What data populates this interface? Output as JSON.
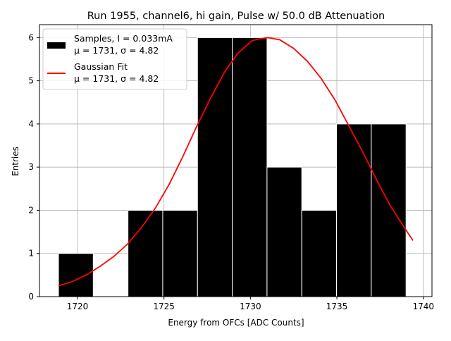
{
  "chart_data": {
    "type": "bar",
    "title": "Run 1955, channel6, hi gain, Pulse w/ 50.0 dB Attenuation",
    "xlabel": "Energy from OFCs [ADC Counts]",
    "ylabel": "Entries",
    "xlim": [
      1717.8,
      1740.5
    ],
    "ylim": [
      0,
      6.3
    ],
    "grid": true,
    "legend_position": "top-left",
    "xticks": [
      "1720",
      "1725",
      "1730",
      "1735",
      "1740"
    ],
    "yticks": [
      "0",
      "1",
      "2",
      "3",
      "4",
      "5",
      "6"
    ],
    "colors": {
      "bars": "#000000",
      "bar_edge": "#ffffff",
      "fit": "#ff0000",
      "grid": "#b0b0b0"
    },
    "histogram": {
      "name": "Samples, I = 0.033mA",
      "stats": "μ = 1731, σ = 4.82",
      "bin_edges": [
        1718.9,
        1720.91,
        1722.92,
        1724.93,
        1726.94,
        1728.95,
        1730.96,
        1732.97,
        1734.98,
        1736.99,
        1739.0
      ],
      "counts": [
        1,
        0,
        2,
        2,
        6,
        6,
        3,
        2,
        4,
        4
      ]
    },
    "fit": {
      "name": "Gaussian Fit",
      "stats": "μ = 1731, σ = 4.82",
      "x": [
        1718.9,
        1719.7,
        1720.5,
        1721.3,
        1722.1,
        1722.9,
        1723.7,
        1724.5,
        1725.3,
        1726.1,
        1726.9,
        1727.7,
        1728.5,
        1729.3,
        1730.1,
        1730.5,
        1731.0,
        1731.7,
        1732.5,
        1733.3,
        1734.1,
        1734.9,
        1735.7,
        1736.5,
        1737.3,
        1738.1,
        1738.9,
        1739.4
      ],
      "y": [
        0.25,
        0.35,
        0.5,
        0.7,
        0.93,
        1.22,
        1.6,
        2.05,
        2.6,
        3.25,
        3.95,
        4.6,
        5.2,
        5.65,
        5.93,
        5.97,
        6.0,
        5.95,
        5.75,
        5.45,
        5.05,
        4.55,
        3.95,
        3.35,
        2.7,
        2.1,
        1.6,
        1.3
      ]
    }
  }
}
